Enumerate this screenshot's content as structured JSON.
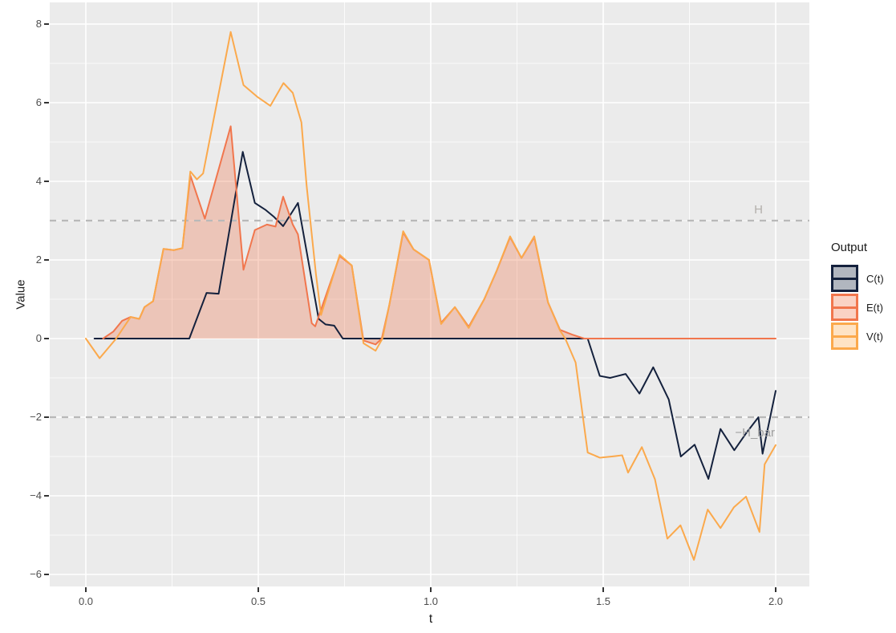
{
  "y_axis": {
    "title": "Value",
    "ticks": [
      {
        "label": "8",
        "value": 8
      },
      {
        "label": "6",
        "value": 6
      },
      {
        "label": "4",
        "value": 4
      },
      {
        "label": "2",
        "value": 2
      },
      {
        "label": "0",
        "value": 0
      },
      {
        "label": "−2",
        "value": -2
      },
      {
        "label": "−4",
        "value": -4
      },
      {
        "label": "−6",
        "value": -6
      }
    ]
  },
  "x_axis": {
    "title": "t",
    "ticks": [
      {
        "label": "0.0",
        "value": 0
      },
      {
        "label": "0.5",
        "value": 0.5
      },
      {
        "label": "1.0",
        "value": 1
      },
      {
        "label": "1.5",
        "value": 1.5
      },
      {
        "label": "2.0",
        "value": 2
      }
    ]
  },
  "legend": {
    "title": "Output",
    "items": [
      {
        "label": "C(t)",
        "color": "#14213D",
        "fill": "#B1B6BF"
      },
      {
        "label": "E(t)",
        "color": "#F1764D",
        "fill": "#FAD2C4"
      },
      {
        "label": "V(t)",
        "color": "#FBA94C",
        "fill": "#FEE3C4"
      }
    ]
  },
  "chart_data": {
    "type": "line",
    "xlabel": "t",
    "ylabel": "Value",
    "xlim": [
      0,
      2
    ],
    "ylim": [
      -6,
      8
    ],
    "x_major": [
      0,
      0.5,
      1,
      1.5,
      2
    ],
    "x_minor": [
      0.25,
      0.75,
      1.25,
      1.75
    ],
    "y_major": [
      8,
      6,
      4,
      2,
      0,
      -2,
      -4,
      -6
    ],
    "y_minor": [
      7,
      5,
      3,
      1,
      -1,
      -3,
      -5
    ],
    "panel_bg": "#EBEBEB",
    "grid_color": "#FFFFFF",
    "hlines": [
      {
        "y": 3,
        "label": "H",
        "label_t": 1.95,
        "label_dy": -9,
        "color": "#B9B9B9",
        "label_color": "#B3B0AB"
      },
      {
        "y": -2,
        "label": "−H_bar",
        "label_t": 1.94,
        "label_dy": 24,
        "color": "#B9B9B9",
        "label_color": "#9E9E9E"
      }
    ],
    "series": [
      {
        "name": "C(t)",
        "color": "#14213D",
        "area": false,
        "points": [
          [
            0.025,
            0
          ],
          [
            0.3,
            0
          ],
          [
            0.35,
            1.16
          ],
          [
            0.385,
            1.14
          ],
          [
            0.455,
            4.75
          ],
          [
            0.49,
            3.45
          ],
          [
            0.52,
            3.28
          ],
          [
            0.545,
            3.1
          ],
          [
            0.572,
            2.86
          ],
          [
            0.615,
            3.45
          ],
          [
            0.675,
            0.5
          ],
          [
            0.695,
            0.36
          ],
          [
            0.72,
            0.33
          ],
          [
            0.745,
            0
          ],
          [
            1.455,
            0
          ],
          [
            1.49,
            -0.95
          ],
          [
            1.52,
            -1.0
          ],
          [
            1.565,
            -0.9
          ],
          [
            1.605,
            -1.4
          ],
          [
            1.645,
            -0.73
          ],
          [
            1.69,
            -1.55
          ],
          [
            1.725,
            -3.0
          ],
          [
            1.765,
            -2.7
          ],
          [
            1.805,
            -3.57
          ],
          [
            1.84,
            -2.3
          ],
          [
            1.88,
            -2.84
          ],
          [
            1.915,
            -2.4
          ],
          [
            1.95,
            -2.0
          ],
          [
            1.962,
            -2.93
          ],
          [
            2.0,
            -1.33
          ]
        ]
      },
      {
        "name": "E(t)",
        "color": "#F1764D",
        "area": true,
        "area_fill": "rgba(241,118,77,0.32)",
        "points": [
          [
            0.05,
            0
          ],
          [
            0.08,
            0.18
          ],
          [
            0.105,
            0.45
          ],
          [
            0.13,
            0.55
          ],
          [
            0.155,
            0.5
          ],
          [
            0.17,
            0.8
          ],
          [
            0.195,
            0.95
          ],
          [
            0.225,
            2.28
          ],
          [
            0.255,
            2.25
          ],
          [
            0.28,
            2.3
          ],
          [
            0.303,
            4.15
          ],
          [
            0.345,
            3.05
          ],
          [
            0.42,
            5.4
          ],
          [
            0.457,
            1.75
          ],
          [
            0.49,
            2.76
          ],
          [
            0.525,
            2.9
          ],
          [
            0.55,
            2.85
          ],
          [
            0.572,
            3.61
          ],
          [
            0.6,
            2.9
          ],
          [
            0.615,
            2.65
          ],
          [
            0.655,
            0.39
          ],
          [
            0.665,
            0.31
          ],
          [
            0.736,
            2.1
          ],
          [
            0.771,
            1.86
          ],
          [
            0.805,
            -0.05
          ],
          [
            0.84,
            -0.15
          ],
          [
            0.858,
            0
          ],
          [
            0.88,
            0.86
          ],
          [
            0.92,
            2.7
          ],
          [
            0.95,
            2.27
          ],
          [
            0.995,
            2.0
          ],
          [
            1.03,
            0.4
          ],
          [
            1.07,
            0.8
          ],
          [
            1.11,
            0.3
          ],
          [
            1.155,
            1.0
          ],
          [
            1.19,
            1.7
          ],
          [
            1.23,
            2.58
          ],
          [
            1.263,
            2.05
          ],
          [
            1.3,
            2.58
          ],
          [
            1.34,
            0.92
          ],
          [
            1.375,
            0.22
          ],
          [
            1.41,
            0.1
          ],
          [
            1.445,
            0
          ],
          [
            2.0,
            0
          ]
        ]
      },
      {
        "name": "V(t)",
        "color": "#FBA94C",
        "area": false,
        "points": [
          [
            0,
            0
          ],
          [
            0.04,
            -0.5
          ],
          [
            0.088,
            0
          ],
          [
            0.13,
            0.55
          ],
          [
            0.155,
            0.5
          ],
          [
            0.17,
            0.8
          ],
          [
            0.195,
            0.95
          ],
          [
            0.225,
            2.28
          ],
          [
            0.255,
            2.25
          ],
          [
            0.28,
            2.3
          ],
          [
            0.303,
            4.25
          ],
          [
            0.322,
            4.05
          ],
          [
            0.34,
            4.2
          ],
          [
            0.42,
            7.8
          ],
          [
            0.457,
            6.45
          ],
          [
            0.497,
            6.15
          ],
          [
            0.535,
            5.92
          ],
          [
            0.573,
            6.5
          ],
          [
            0.6,
            6.25
          ],
          [
            0.625,
            5.5
          ],
          [
            0.64,
            3.9
          ],
          [
            0.667,
            1.65
          ],
          [
            0.682,
            0.6
          ],
          [
            0.736,
            2.13
          ],
          [
            0.771,
            1.86
          ],
          [
            0.805,
            -0.12
          ],
          [
            0.84,
            -0.31
          ],
          [
            0.86,
            0
          ],
          [
            0.88,
            0.86
          ],
          [
            0.92,
            2.73
          ],
          [
            0.95,
            2.27
          ],
          [
            0.995,
            2.0
          ],
          [
            1.03,
            0.37
          ],
          [
            1.07,
            0.8
          ],
          [
            1.11,
            0.27
          ],
          [
            1.155,
            1.0
          ],
          [
            1.19,
            1.7
          ],
          [
            1.23,
            2.6
          ],
          [
            1.263,
            2.05
          ],
          [
            1.3,
            2.6
          ],
          [
            1.34,
            0.92
          ],
          [
            1.375,
            0.2
          ],
          [
            1.39,
            0
          ],
          [
            1.42,
            -0.61
          ],
          [
            1.455,
            -2.9
          ],
          [
            1.49,
            -3.03
          ],
          [
            1.525,
            -3.0
          ],
          [
            1.555,
            -2.97
          ],
          [
            1.572,
            -3.41
          ],
          [
            1.612,
            -2.76
          ],
          [
            1.65,
            -3.58
          ],
          [
            1.686,
            -5.09
          ],
          [
            1.724,
            -4.75
          ],
          [
            1.763,
            -5.63
          ],
          [
            1.803,
            -4.35
          ],
          [
            1.84,
            -4.82
          ],
          [
            1.879,
            -4.29
          ],
          [
            1.914,
            -4.02
          ],
          [
            1.953,
            -4.92
          ],
          [
            1.968,
            -3.2
          ],
          [
            2.0,
            -2.71
          ]
        ]
      }
    ]
  }
}
